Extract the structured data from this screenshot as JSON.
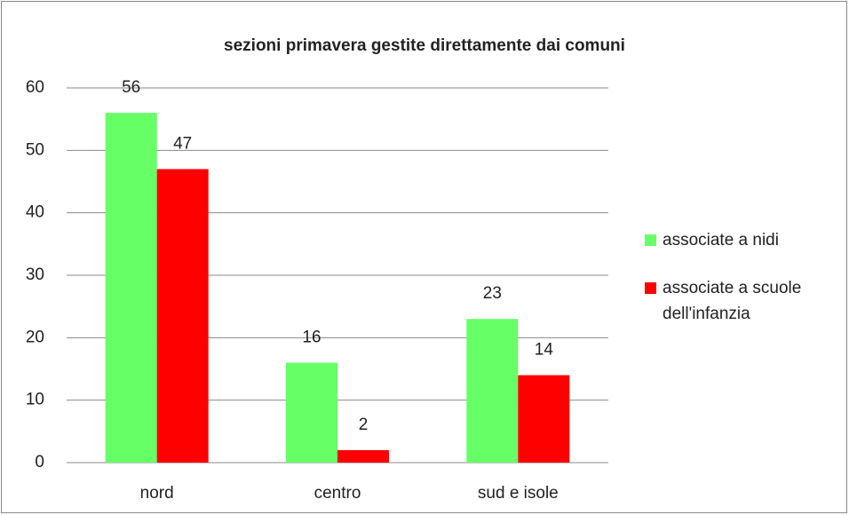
{
  "chart_data": {
    "type": "bar",
    "title": "sezioni primavera gestite direttamente dai comuni",
    "categories": [
      "nord",
      "centro",
      "sud e isole"
    ],
    "series": [
      {
        "name": "associate a nidi",
        "color": "#66ff66",
        "values": [
          56,
          16,
          23
        ]
      },
      {
        "name": "associate a scuole dell'infanzia",
        "color": "#ff0000",
        "values": [
          47,
          2,
          14
        ]
      }
    ],
    "ylim": [
      0,
      60
    ],
    "yticks": [
      0,
      10,
      20,
      30,
      40,
      50,
      60
    ],
    "grid": true,
    "legend": "right"
  }
}
